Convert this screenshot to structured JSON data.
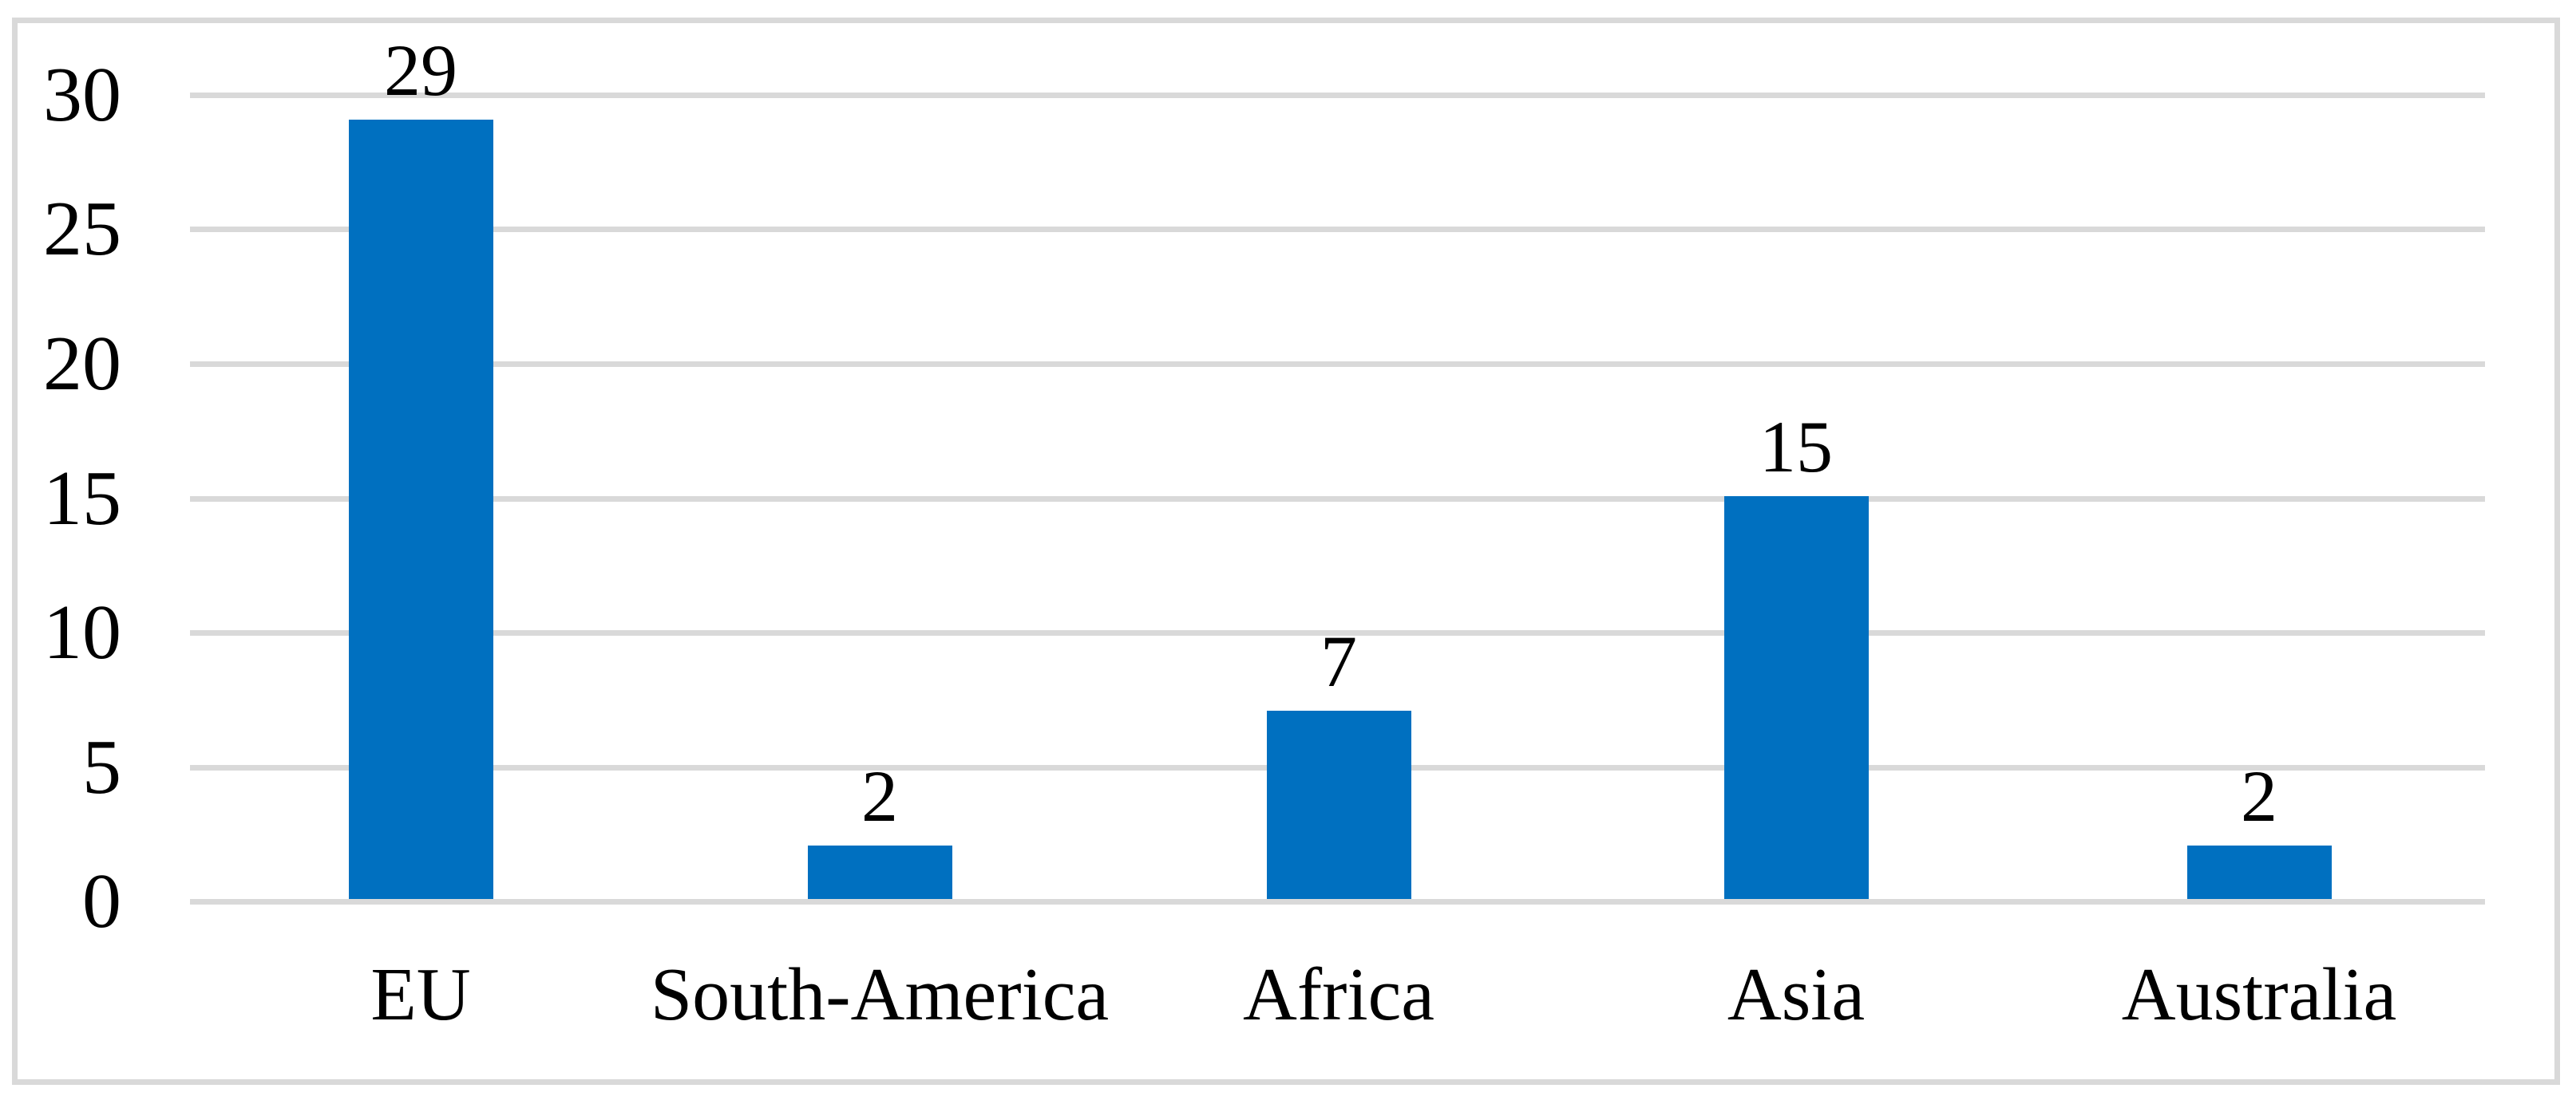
{
  "chart_data": {
    "type": "bar",
    "title": "",
    "xlabel": "",
    "ylabel": "",
    "categories": [
      "EU",
      "South-America",
      "Africa",
      "Asia",
      "Australia"
    ],
    "values": [
      29,
      2,
      7,
      15,
      2
    ],
    "data_labels": [
      "29",
      "2",
      "7",
      "15",
      "2"
    ],
    "ylim": [
      0,
      30
    ],
    "y_ticks": [
      0,
      5,
      10,
      15,
      20,
      25,
      30
    ],
    "y_tick_labels": [
      "0",
      "5",
      "10",
      "15",
      "20",
      "25",
      "30"
    ],
    "grid": true,
    "legend": false,
    "series_count": 1,
    "colors": {
      "bar": "#0070C0",
      "gridline": "#D9D9D9",
      "frame_border": "#D9D9D9",
      "text": "#000000",
      "background": "#FFFFFF"
    }
  }
}
